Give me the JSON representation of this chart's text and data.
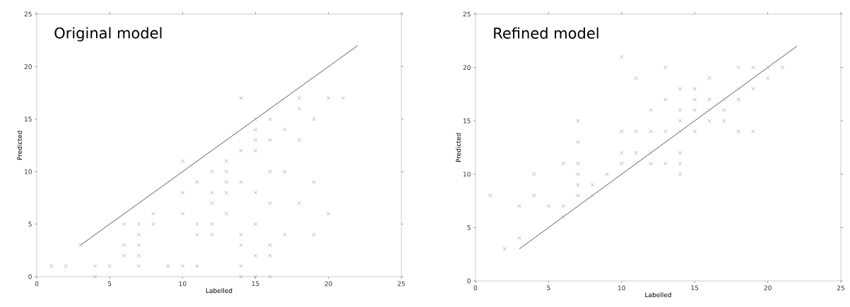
{
  "chart_data": [
    {
      "type": "scatter",
      "title": "Original model",
      "xlabel": "Labelled",
      "ylabel": "Predicted",
      "xlim": [
        0,
        25
      ],
      "ylim": [
        0,
        25
      ],
      "xticks": [
        0,
        5,
        10,
        15,
        20,
        25
      ],
      "yticks": [
        0,
        5,
        10,
        15,
        20,
        25
      ],
      "grid": false,
      "legend": false,
      "series": [
        {
          "type": "scatter",
          "marker": "cross",
          "color": "#999999",
          "x": [
            1,
            2,
            3,
            4,
            4,
            5,
            6,
            6,
            6,
            7,
            7,
            7,
            7,
            7,
            8,
            8,
            9,
            10,
            10,
            10,
            10,
            11,
            11,
            11,
            11,
            12,
            12,
            12,
            12,
            12,
            13,
            13,
            13,
            13,
            13,
            14,
            14,
            14,
            14,
            14,
            14,
            14,
            15,
            15,
            15,
            15,
            15,
            15,
            15,
            15,
            16,
            16,
            16,
            16,
            16,
            16,
            16,
            17,
            17,
            17,
            18,
            18,
            18,
            18,
            19,
            19,
            19,
            20,
            20,
            21
          ],
          "values": [
            1,
            1,
            3,
            1,
            0,
            1,
            5,
            3,
            2,
            5,
            4,
            3,
            2,
            1,
            6,
            5,
            1,
            11,
            8,
            6,
            1,
            9,
            5,
            4,
            1,
            10,
            8,
            7,
            5,
            4,
            11,
            10,
            9,
            8,
            6,
            17,
            12,
            9,
            4,
            3,
            1,
            0,
            15,
            14,
            13,
            12,
            8,
            5,
            2,
            0,
            15,
            13,
            10,
            7,
            3,
            2,
            0,
            14,
            10,
            4,
            17,
            16,
            13,
            7,
            15,
            9,
            4,
            17,
            6,
            17
          ]
        },
        {
          "type": "line",
          "color": "#333333",
          "x": [
            3,
            22
          ],
          "values": [
            3,
            22
          ]
        }
      ]
    },
    {
      "type": "scatter",
      "title": "Refined model",
      "xlabel": "Labelled",
      "ylabel": "Predicted",
      "xlim": [
        0,
        25
      ],
      "ylim": [
        0,
        25
      ],
      "xticks": [
        0,
        5,
        10,
        15,
        20,
        25
      ],
      "yticks": [
        0,
        5,
        10,
        15,
        20,
        25
      ],
      "grid": false,
      "legend": false,
      "series": [
        {
          "type": "scatter",
          "marker": "cross",
          "color": "#999999",
          "x": [
            1,
            2,
            3,
            3,
            4,
            4,
            5,
            6,
            6,
            6,
            7,
            7,
            7,
            7,
            7,
            7,
            8,
            8,
            9,
            10,
            10,
            10,
            10,
            11,
            11,
            11,
            11,
            12,
            12,
            12,
            12,
            13,
            13,
            13,
            13,
            14,
            14,
            14,
            14,
            14,
            14,
            14,
            15,
            15,
            15,
            15,
            16,
            16,
            16,
            16,
            17,
            17,
            17,
            18,
            18,
            18,
            18,
            19,
            19,
            19,
            20,
            20,
            21
          ],
          "values": [
            8,
            3,
            7,
            4,
            10,
            8,
            7,
            11,
            7,
            6,
            15,
            13,
            11,
            10,
            9,
            8,
            9,
            8,
            10,
            21,
            14,
            12,
            11,
            19,
            14,
            12,
            11,
            16,
            14,
            12,
            11,
            20,
            17,
            14,
            11,
            18,
            16,
            15,
            14,
            12,
            11,
            10,
            18,
            17,
            16,
            14,
            19,
            17,
            16,
            15,
            17,
            16,
            15,
            20,
            18,
            17,
            14,
            20,
            18,
            14,
            20,
            19,
            20
          ]
        },
        {
          "type": "line",
          "color": "#333333",
          "x": [
            3,
            22
          ],
          "values": [
            3,
            22
          ]
        }
      ]
    }
  ]
}
